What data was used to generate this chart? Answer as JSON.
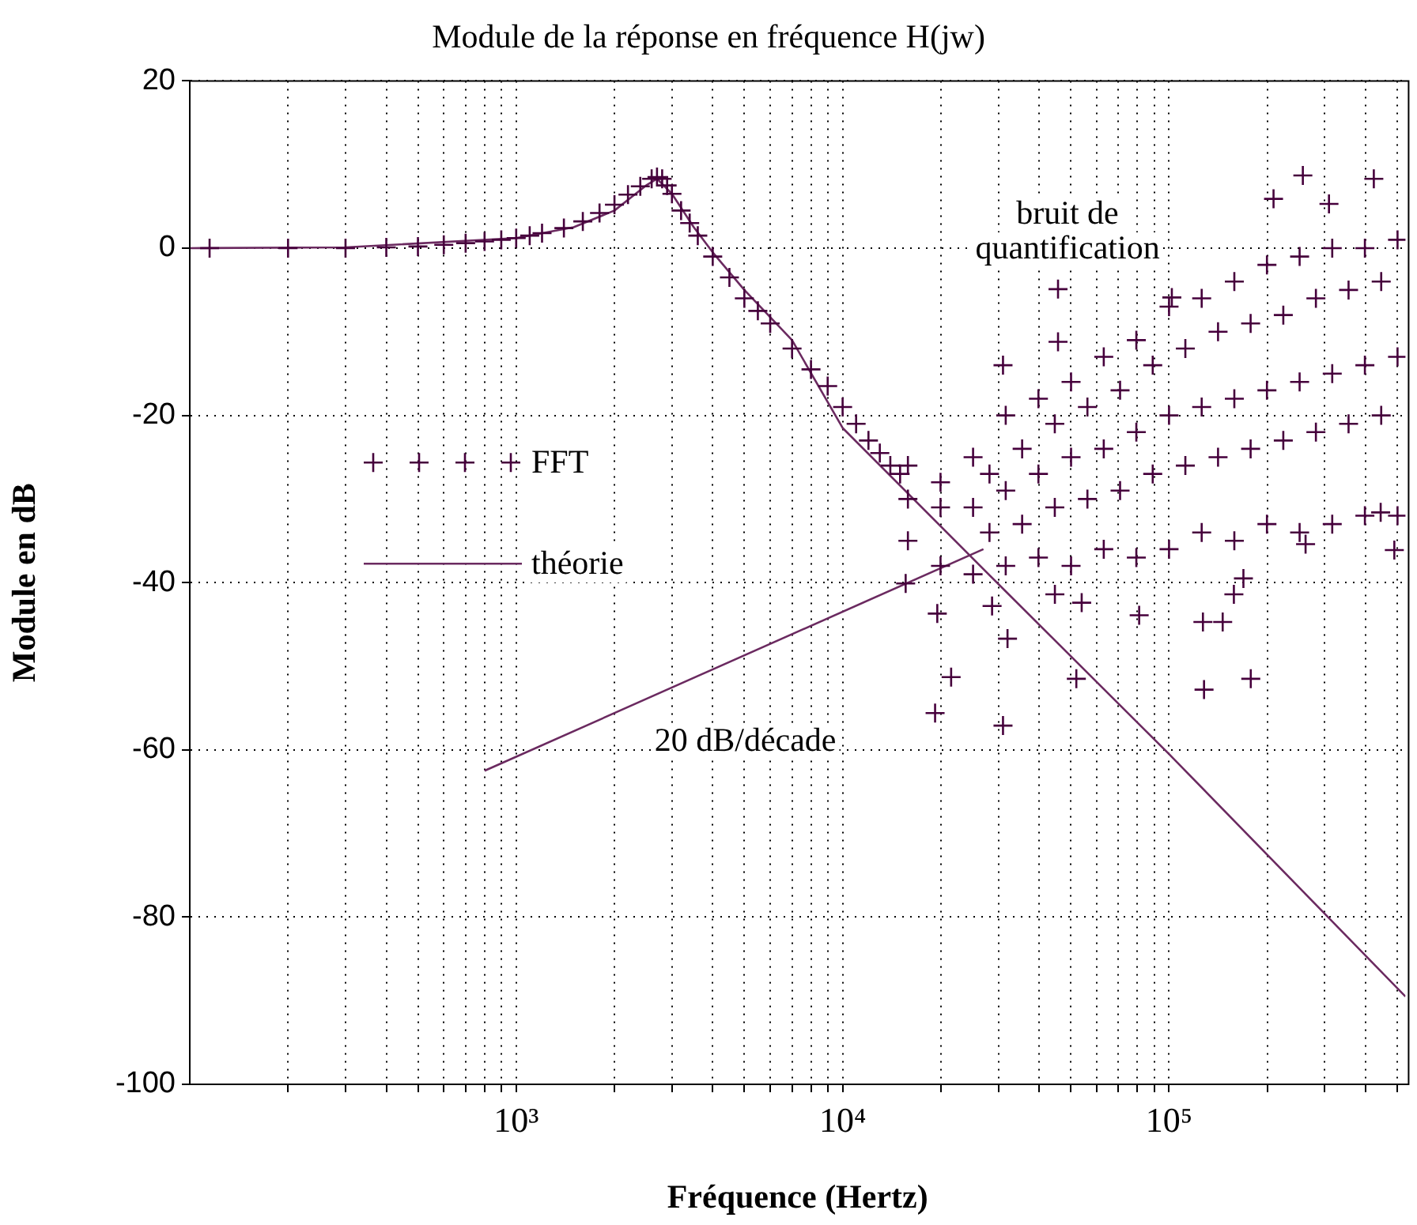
{
  "chart_data": {
    "type": "scatter",
    "title": "Module de la réponse en fréquence H(jw)",
    "xlabel": "Fréquence (Hertz)",
    "ylabel": "Module en dB",
    "log": "x",
    "grid": true,
    "legend": "left",
    "xlim": [
      100,
      530000
    ],
    "ylim": [
      -100,
      20
    ],
    "xticks": [
      {
        "value": 200,
        "label": null
      },
      {
        "value": 300,
        "label": null
      },
      {
        "value": 400,
        "label": null
      },
      {
        "value": 500,
        "label": null
      },
      {
        "value": 600,
        "label": null
      },
      {
        "value": 700,
        "label": null
      },
      {
        "value": 800,
        "label": null
      },
      {
        "value": 900,
        "label": null
      },
      {
        "value": 1000,
        "label": "10³"
      },
      {
        "value": 2000,
        "label": null
      },
      {
        "value": 3000,
        "label": null
      },
      {
        "value": 4000,
        "label": null
      },
      {
        "value": 5000,
        "label": null
      },
      {
        "value": 6000,
        "label": null
      },
      {
        "value": 7000,
        "label": null
      },
      {
        "value": 8000,
        "label": null
      },
      {
        "value": 9000,
        "label": null
      },
      {
        "value": 10000,
        "label": "10⁴"
      },
      {
        "value": 20000,
        "label": null
      },
      {
        "value": 30000,
        "label": null
      },
      {
        "value": 40000,
        "label": null
      },
      {
        "value": 50000,
        "label": null
      },
      {
        "value": 60000,
        "label": null
      },
      {
        "value": 70000,
        "label": null
      },
      {
        "value": 80000,
        "label": null
      },
      {
        "value": 90000,
        "label": null
      },
      {
        "value": 100000,
        "label": "10⁵"
      },
      {
        "value": 200000,
        "label": null
      },
      {
        "value": 300000,
        "label": null
      },
      {
        "value": 400000,
        "label": null
      },
      {
        "value": 500000,
        "label": null
      }
    ],
    "yticks": [
      -100,
      -80,
      -60,
      -40,
      -20,
      0,
      20
    ],
    "annotations": [
      "bruit de quantification",
      "20 dB/décade"
    ],
    "series": [
      {
        "name": "FFT",
        "marker": "cross",
        "color": "#46003c",
        "x": [
          115,
          200,
          300,
          400,
          500,
          600,
          700,
          800,
          900,
          1000,
          1100,
          1200,
          1400,
          1600,
          1800,
          2000,
          2200,
          2400,
          2600,
          2700,
          2800,
          2900,
          3000,
          3200,
          3400,
          3600,
          4000,
          4500,
          5000,
          5500,
          6000,
          7000,
          8000,
          9000,
          10000,
          11000,
          12000,
          13000,
          14000,
          15000,
          15850,
          15850,
          15850,
          19950,
          19950,
          19950,
          25100,
          25100,
          25100,
          31600,
          31600,
          31600,
          39800,
          39800,
          39800,
          50100,
          50100,
          50100,
          63100,
          63100,
          63100,
          79400,
          79400,
          79400,
          100000,
          100000,
          100000,
          125900,
          125900,
          125900,
          158500,
          158500,
          158500,
          199500,
          199500,
          199500,
          251200,
          251200,
          251200,
          316200,
          316200,
          316200,
          398100,
          398100,
          398100,
          501200,
          501200,
          501200,
          28180,
          28180,
          35480,
          35480,
          44670,
          44670,
          56230,
          56230,
          70790,
          70790,
          89130,
          89130,
          112200,
          112200,
          141300,
          141300,
          177800,
          177800,
          223900,
          223900,
          281800,
          281800,
          354800,
          354800,
          446700,
          446700,
          257000,
          424000,
          209000,
          309000,
          45700,
          31000,
          45700,
          102000,
          15600,
          19500,
          21500,
          19200,
          31000,
          32000,
          28700,
          52000,
          128000,
          178000,
          81000,
          127000,
          146000,
          158000,
          169000,
          262000,
          490000,
          445000,
          54000,
          44700
        ],
        "values": [
          0,
          0,
          0,
          0.1,
          0.2,
          0.4,
          0.6,
          0.8,
          1,
          1.2,
          1.5,
          1.8,
          2.4,
          3.2,
          4.2,
          5.2,
          6.4,
          7.4,
          8.3,
          8.5,
          8.3,
          7.5,
          6.5,
          4.5,
          3,
          1.5,
          -1,
          -3.5,
          -6,
          -7.5,
          -9,
          -12,
          -14.5,
          -16.5,
          -19,
          -21,
          -23,
          -24.5,
          -26,
          -27,
          -26,
          -30,
          -35,
          -28,
          -31,
          -38,
          -25,
          -31,
          -39,
          -20,
          -29,
          -38,
          -18,
          -27,
          -37,
          -16,
          -25,
          -38,
          -13,
          -24,
          -36,
          -11,
          -22,
          -37,
          -7,
          -20,
          -36,
          -6,
          -19,
          -34,
          -4,
          -18,
          -35,
          -2,
          -17,
          -33,
          -1,
          -16,
          -34,
          0,
          -15,
          -33,
          0,
          -14,
          -32,
          1,
          -13,
          -32,
          -27,
          -34,
          -24,
          -33,
          -21,
          -31,
          -19,
          -30,
          -17,
          -29,
          -14,
          -27,
          -12,
          -26,
          -10,
          -25,
          -9,
          -24,
          -8,
          -23,
          -6,
          -22,
          -5,
          -21,
          -4,
          -20,
          8.7,
          8.3,
          5.9,
          5.3,
          -4.9,
          -14,
          -11.2,
          -5.9,
          -40.1,
          -43.7,
          -51.3,
          -55.6,
          -57.1,
          -46.7,
          -42.8,
          -51.5,
          -52.8,
          -51.5,
          -43.9,
          -44.7,
          -44.7,
          -41.4,
          -39.5,
          -35.4,
          -36.1,
          -31.6,
          -42.4,
          -41.4
        ]
      },
      {
        "name": "théorie",
        "type": "line",
        "marker": "none",
        "color": "#6b2a60",
        "x": [
          100,
          300,
          1000,
          1500,
          2000,
          2500,
          2700,
          3000,
          3500,
          4000,
          5000,
          7000,
          10000,
          28000,
          100000,
          530000
        ],
        "values": [
          0,
          0.1,
          1.2,
          2.5,
          4.5,
          7.5,
          8.3,
          6.5,
          2.5,
          -0.5,
          -5,
          -11,
          -21.5,
          -39,
          -60.5,
          -89.5
        ]
      },
      {
        "type": "line",
        "marker": "none",
        "color": "#6b2a60",
        "x": [
          800,
          27000
        ],
        "values": [
          -62.5,
          -36
        ]
      }
    ]
  }
}
